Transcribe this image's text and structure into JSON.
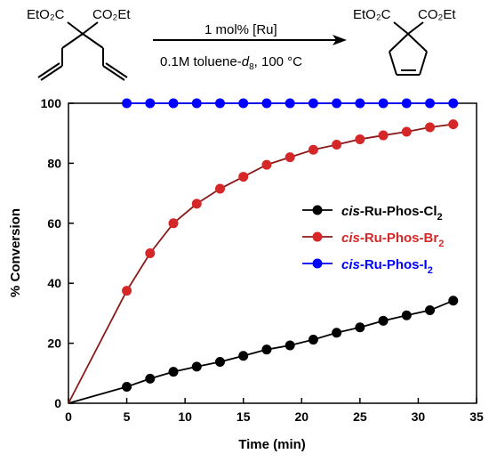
{
  "scheme": {
    "left_group_1": "EtO₂C",
    "left_group_2": "CO₂Et",
    "right_group_1": "EtO₂C",
    "right_group_2": "CO₂Et",
    "catalyst": "1 mol% [Ru]",
    "conditions_prefix": "0.1M toluene-",
    "conditions_italic": "d",
    "conditions_sub": "8",
    "conditions_suffix": ", 100 °C"
  },
  "chart_data": {
    "type": "line",
    "xlabel": "Time (min)",
    "ylabel": "% Conversion",
    "xlim": [
      0,
      35
    ],
    "ylim": [
      0,
      100
    ],
    "xticks": [
      0,
      5,
      10,
      15,
      20,
      25,
      30,
      35
    ],
    "yticks": [
      0,
      20,
      40,
      60,
      80,
      100
    ],
    "grid": false,
    "legend_position": "middle-right",
    "series": [
      {
        "name": "cis-Ru-Phos-Cl2",
        "name_italic": "cis",
        "name_main": "-Ru-Phos-Cl",
        "name_sub": "2",
        "color": "#000000",
        "line_color": "#000000",
        "x": [
          0,
          5,
          7,
          9,
          11,
          13,
          15,
          17,
          19,
          21,
          23,
          25,
          27,
          29,
          31,
          33
        ],
        "y": [
          0,
          5.5,
          8.2,
          10.5,
          12.2,
          13.8,
          15.8,
          17.9,
          19.3,
          21.2,
          23.5,
          25.3,
          27.5,
          29.3,
          31,
          34.2
        ]
      },
      {
        "name": "cis-Ru-Phos-Br2",
        "name_italic": "cis",
        "name_main": "-Ru-Phos-Br",
        "name_sub": "2",
        "color": "#d62728",
        "line_color": "#8b1a1a",
        "x": [
          0,
          5,
          7,
          9,
          11,
          13,
          15,
          17,
          19,
          21,
          23,
          25,
          27,
          29,
          31,
          33
        ],
        "y": [
          0,
          37.5,
          50,
          60,
          66.5,
          71.5,
          75.5,
          79.5,
          82,
          84.5,
          86.2,
          88,
          89.3,
          90.5,
          92,
          93
        ]
      },
      {
        "name": "cis-Ru-Phos-I2",
        "name_italic": "cis",
        "name_main": "-Ru-Phos-I",
        "name_sub": "2",
        "color": "#0000ff",
        "line_color": "#0000ff",
        "x": [
          5,
          7,
          9,
          11,
          13,
          15,
          17,
          19,
          21,
          23,
          25,
          27,
          29,
          31,
          33
        ],
        "y": [
          100,
          100,
          100,
          100,
          100,
          100,
          100,
          100,
          100,
          100,
          100,
          100,
          100,
          100,
          100
        ]
      }
    ]
  }
}
